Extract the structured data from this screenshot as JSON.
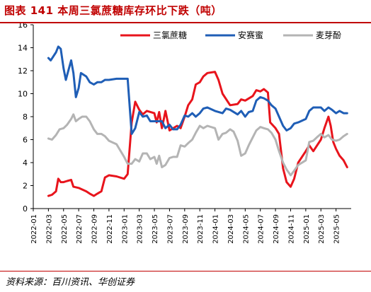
{
  "title": "图表 141   本周三氯蔗糖库存环比下跌（吨）",
  "source": "资料来源：百川资讯、华创证券",
  "chart_data": {
    "type": "line",
    "xlabel": "",
    "ylabel": "",
    "ylim": [
      0,
      16
    ],
    "yticks": [
      "0",
      "2",
      "4",
      "6",
      "8",
      "10",
      "12",
      "14",
      "16"
    ],
    "xlim": [
      "2022-01",
      "2025-07"
    ],
    "xticks": [
      "2022-01",
      "2022-03",
      "2022-05",
      "2022-07",
      "2022-09",
      "2022-11",
      "2023-01",
      "2023-03",
      "2023-05",
      "2023-07",
      "2023-09",
      "2023-11",
      "2024-01",
      "2024-03",
      "2024-05",
      "2024-07",
      "2024-09",
      "2024-11",
      "2025-01",
      "2025-03",
      "2025-05"
    ],
    "grid": false,
    "legend_position": "top",
    "series": [
      {
        "name": "三氯蔗糖",
        "color": "#e8141c",
        "points": [
          [
            "2022-03",
            1.1
          ],
          [
            "2022-03-15",
            1.2
          ],
          [
            "2022-04",
            1.5
          ],
          [
            "2022-04-10",
            2.6
          ],
          [
            "2022-04-20",
            2.3
          ],
          [
            "2022-05",
            2.3
          ],
          [
            "2022-05-15",
            2.4
          ],
          [
            "2022-06",
            2.5
          ],
          [
            "2022-06-10",
            1.9
          ],
          [
            "2022-07",
            1.8
          ],
          [
            "2022-08",
            1.5
          ],
          [
            "2022-08-15",
            1.3
          ],
          [
            "2022-09",
            1.1
          ],
          [
            "2022-09-15",
            1.3
          ],
          [
            "2022-10",
            1.5
          ],
          [
            "2022-10-15",
            2.7
          ],
          [
            "2022-11",
            2.9
          ],
          [
            "2022-12",
            2.8
          ],
          [
            "2023-01",
            2.6
          ],
          [
            "2023-01-15",
            3.0
          ],
          [
            "2023-02",
            7.5
          ],
          [
            "2023-02-15",
            9.3
          ],
          [
            "2023-03",
            8.6
          ],
          [
            "2023-03-15",
            8.2
          ],
          [
            "2023-04",
            8.5
          ],
          [
            "2023-05",
            8.3
          ],
          [
            "2023-05-10",
            7.5
          ],
          [
            "2023-05-20",
            8.4
          ],
          [
            "2023-06",
            7.0
          ],
          [
            "2023-06-15",
            8.5
          ],
          [
            "2023-07",
            6.8
          ],
          [
            "2023-08",
            7.2
          ],
          [
            "2023-08-15",
            7.0
          ],
          [
            "2023-09",
            8.0
          ],
          [
            "2023-09-15",
            9.0
          ],
          [
            "2023-10",
            9.5
          ],
          [
            "2023-10-15",
            10.8
          ],
          [
            "2023-11",
            11.0
          ],
          [
            "2023-11-15",
            11.5
          ],
          [
            "2023-12",
            11.8
          ],
          [
            "2024-01",
            11.9
          ],
          [
            "2024-01-15",
            11.2
          ],
          [
            "2024-02",
            10.0
          ],
          [
            "2024-03",
            9.0
          ],
          [
            "2024-04",
            9.1
          ],
          [
            "2024-04-15",
            9.5
          ],
          [
            "2024-05",
            9.4
          ],
          [
            "2024-06",
            9.8
          ],
          [
            "2024-06-15",
            10.3
          ],
          [
            "2024-07",
            10.2
          ],
          [
            "2024-07-15",
            10.4
          ],
          [
            "2024-08",
            10.1
          ],
          [
            "2024-08-10",
            7.5
          ],
          [
            "2024-09",
            7.0
          ],
          [
            "2024-09-15",
            6.5
          ],
          [
            "2024-10",
            3.5
          ],
          [
            "2024-10-15",
            2.3
          ],
          [
            "2024-11",
            1.9
          ],
          [
            "2024-11-15",
            2.6
          ],
          [
            "2024-12",
            4.0
          ],
          [
            "2025-01",
            5.0
          ],
          [
            "2025-01-15",
            5.5
          ],
          [
            "2025-02",
            5.0
          ],
          [
            "2025-03",
            6.0
          ],
          [
            "2025-03-15",
            7.0
          ],
          [
            "2025-04",
            8.0
          ],
          [
            "2025-04-10",
            7.2
          ],
          [
            "2025-04-20",
            5.8
          ],
          [
            "2025-05",
            5.2
          ],
          [
            "2025-05-15",
            4.6
          ],
          [
            "2025-06",
            4.2
          ],
          [
            "2025-06-15",
            3.6
          ]
        ]
      },
      {
        "name": "安赛蜜",
        "color": "#1f5eb6",
        "points": [
          [
            "2022-03",
            13.1
          ],
          [
            "2022-03-10",
            12.9
          ],
          [
            "2022-04",
            13.6
          ],
          [
            "2022-04-10",
            14.1
          ],
          [
            "2022-04-20",
            13.9
          ],
          [
            "2022-05",
            12.2
          ],
          [
            "2022-05-10",
            11.2
          ],
          [
            "2022-05-20",
            12.0
          ],
          [
            "2022-06",
            12.9
          ],
          [
            "2022-06-10",
            11.8
          ],
          [
            "2022-06-20",
            9.7
          ],
          [
            "2022-07",
            10.5
          ],
          [
            "2022-07-10",
            11.8
          ],
          [
            "2022-08",
            11.5
          ],
          [
            "2022-08-15",
            11.0
          ],
          [
            "2022-09",
            10.8
          ],
          [
            "2022-09-15",
            11.0
          ],
          [
            "2022-10",
            11.0
          ],
          [
            "2022-10-15",
            11.2
          ],
          [
            "2022-11",
            11.2
          ],
          [
            "2022-12",
            11.3
          ],
          [
            "2023-01",
            11.3
          ],
          [
            "2023-01-15",
            11.3
          ],
          [
            "2023-02",
            6.5
          ],
          [
            "2023-02-15",
            7.0
          ],
          [
            "2023-03",
            8.4
          ],
          [
            "2023-03-15",
            8.0
          ],
          [
            "2023-04",
            8.1
          ],
          [
            "2023-04-15",
            7.6
          ],
          [
            "2023-05",
            7.6
          ],
          [
            "2023-06",
            7.6
          ],
          [
            "2023-06-15",
            7.0
          ],
          [
            "2023-07",
            7.3
          ],
          [
            "2023-07-15",
            6.9
          ],
          [
            "2023-08",
            6.9
          ],
          [
            "2023-08-15",
            7.3
          ],
          [
            "2023-09",
            8.1
          ],
          [
            "2023-09-15",
            8.0
          ],
          [
            "2023-10",
            8.3
          ],
          [
            "2023-10-15",
            8.0
          ],
          [
            "2023-11",
            8.3
          ],
          [
            "2023-11-15",
            8.7
          ],
          [
            "2023-12",
            8.8
          ],
          [
            "2024-01",
            8.5
          ],
          [
            "2024-02",
            8.3
          ],
          [
            "2024-02-15",
            8.7
          ],
          [
            "2024-03",
            8.6
          ],
          [
            "2024-04",
            8.2
          ],
          [
            "2024-04-15",
            8.5
          ],
          [
            "2024-05",
            8.0
          ],
          [
            "2024-05-15",
            8.4
          ],
          [
            "2024-06",
            8.5
          ],
          [
            "2024-06-15",
            9.4
          ],
          [
            "2024-07",
            9.7
          ],
          [
            "2024-07-15",
            9.6
          ],
          [
            "2024-08",
            9.4
          ],
          [
            "2024-08-15",
            9.0
          ],
          [
            "2024-09",
            8.7
          ],
          [
            "2024-09-15",
            8.0
          ],
          [
            "2024-10",
            7.2
          ],
          [
            "2024-10-15",
            6.8
          ],
          [
            "2024-11",
            7.0
          ],
          [
            "2024-11-15",
            7.4
          ],
          [
            "2024-12",
            7.5
          ],
          [
            "2025-01",
            7.8
          ],
          [
            "2025-01-15",
            8.5
          ],
          [
            "2025-02",
            8.8
          ],
          [
            "2025-03",
            8.8
          ],
          [
            "2025-03-15",
            8.5
          ],
          [
            "2025-04",
            8.8
          ],
          [
            "2025-04-15",
            8.6
          ],
          [
            "2025-05",
            8.3
          ],
          [
            "2025-05-15",
            8.5
          ],
          [
            "2025-06",
            8.3
          ],
          [
            "2025-06-15",
            8.3
          ]
        ]
      },
      {
        "name": "麦芽酚",
        "color": "#b4b4b4",
        "points": [
          [
            "2022-03",
            6.1
          ],
          [
            "2022-03-15",
            6.0
          ],
          [
            "2022-04",
            6.4
          ],
          [
            "2022-04-15",
            6.9
          ],
          [
            "2022-05",
            7.0
          ],
          [
            "2022-05-15",
            7.3
          ],
          [
            "2022-06",
            7.8
          ],
          [
            "2022-06-10",
            8.2
          ],
          [
            "2022-06-20",
            7.6
          ],
          [
            "2022-07",
            7.8
          ],
          [
            "2022-07-15",
            8.0
          ],
          [
            "2022-08",
            8.0
          ],
          [
            "2022-08-15",
            7.6
          ],
          [
            "2022-09",
            6.9
          ],
          [
            "2022-09-15",
            6.5
          ],
          [
            "2022-10",
            6.5
          ],
          [
            "2022-10-15",
            6.3
          ],
          [
            "2022-11",
            5.9
          ],
          [
            "2022-12",
            5.6
          ],
          [
            "2023-01",
            4.5
          ],
          [
            "2023-01-15",
            3.9
          ],
          [
            "2023-02",
            3.9
          ],
          [
            "2023-02-15",
            4.3
          ],
          [
            "2023-03",
            4.1
          ],
          [
            "2023-03-15",
            4.8
          ],
          [
            "2023-04",
            4.8
          ],
          [
            "2023-04-15",
            4.3
          ],
          [
            "2023-05",
            4.5
          ],
          [
            "2023-05-10",
            3.9
          ],
          [
            "2023-05-20",
            4.6
          ],
          [
            "2023-06",
            3.6
          ],
          [
            "2023-06-15",
            3.8
          ],
          [
            "2023-07",
            4.4
          ],
          [
            "2023-07-15",
            4.5
          ],
          [
            "2023-08",
            4.5
          ],
          [
            "2023-08-15",
            5.5
          ],
          [
            "2023-09",
            5.4
          ],
          [
            "2023-09-15",
            5.7
          ],
          [
            "2023-10",
            6.0
          ],
          [
            "2023-10-15",
            6.6
          ],
          [
            "2023-11",
            7.2
          ],
          [
            "2023-11-15",
            7.0
          ],
          [
            "2023-12",
            7.2
          ],
          [
            "2024-01",
            7.0
          ],
          [
            "2024-01-15",
            6.0
          ],
          [
            "2024-02",
            6.5
          ],
          [
            "2024-02-15",
            6.6
          ],
          [
            "2024-03",
            6.9
          ],
          [
            "2024-03-15",
            6.7
          ],
          [
            "2024-04",
            5.9
          ],
          [
            "2024-04-15",
            4.6
          ],
          [
            "2024-05",
            4.8
          ],
          [
            "2024-05-15",
            5.5
          ],
          [
            "2024-06",
            6.2
          ],
          [
            "2024-06-15",
            6.8
          ],
          [
            "2024-07",
            7.1
          ],
          [
            "2024-07-15",
            7.0
          ],
          [
            "2024-08",
            6.9
          ],
          [
            "2024-08-15",
            6.6
          ],
          [
            "2024-09",
            6.0
          ],
          [
            "2024-09-15",
            5.0
          ],
          [
            "2024-10",
            4.0
          ],
          [
            "2024-10-15",
            3.4
          ],
          [
            "2024-11",
            2.9
          ],
          [
            "2024-11-15",
            3.3
          ],
          [
            "2024-12",
            3.8
          ],
          [
            "2025-01",
            4.2
          ],
          [
            "2025-01-15",
            5.8
          ],
          [
            "2025-02",
            5.9
          ],
          [
            "2025-02-15",
            6.2
          ],
          [
            "2025-03",
            6.5
          ],
          [
            "2025-03-15",
            6.2
          ],
          [
            "2025-04",
            6.4
          ],
          [
            "2025-04-15",
            6.0
          ],
          [
            "2025-05",
            5.9
          ],
          [
            "2025-05-15",
            6.0
          ],
          [
            "2025-06",
            6.3
          ],
          [
            "2025-06-15",
            6.5
          ]
        ]
      }
    ]
  }
}
